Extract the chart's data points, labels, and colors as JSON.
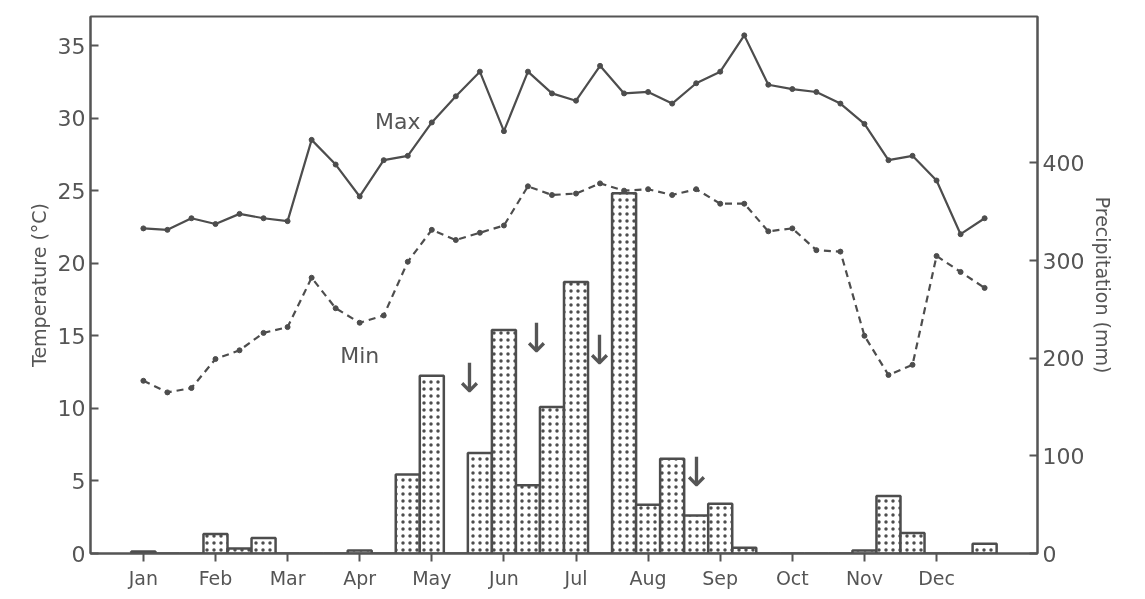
{
  "chart_data": {
    "type": "line",
    "ylabel": "Temperature (°C)",
    "y2label": "Precipitation (mm)",
    "categories": [
      "Jan",
      null,
      null,
      "Feb",
      null,
      null,
      "Mar",
      null,
      null,
      "Apr",
      null,
      null,
      "May",
      null,
      null,
      "Jun",
      null,
      null,
      "Jul",
      null,
      null,
      "Aug",
      null,
      null,
      "Sep",
      null,
      null,
      "Oct",
      null,
      null,
      "Nov",
      null,
      null,
      "Dec",
      null,
      null
    ],
    "ylim": [
      0,
      37
    ],
    "yticks": [
      0,
      5,
      10,
      15,
      20,
      25,
      30,
      35
    ],
    "y2lim": [
      0,
      550
    ],
    "y2ticks": [
      0,
      100,
      200,
      300,
      400
    ],
    "series": [
      {
        "name": "Max",
        "color": "#4d4d4d",
        "line_style": "solid",
        "marker": "circle",
        "values": [
          22.4,
          22.3,
          23.1,
          22.7,
          23.4,
          23.1,
          22.9,
          28.5,
          26.8,
          24.6,
          27.1,
          27.4,
          29.7,
          31.5,
          33.2,
          29.1,
          33.2,
          31.7,
          31.2,
          33.6,
          31.7,
          31.8,
          31.0,
          32.4,
          33.2,
          35.7,
          32.3,
          32.0,
          31.8,
          31.0,
          29.6,
          27.1,
          27.4,
          25.7,
          22.0,
          23.1
        ]
      },
      {
        "name": "Min",
        "color": "#4d4d4d",
        "line_style": "dashed",
        "marker": "circle",
        "values": [
          11.9,
          11.1,
          11.4,
          13.4,
          14.0,
          15.2,
          15.6,
          19.0,
          16.9,
          15.9,
          16.4,
          20.1,
          22.3,
          21.6,
          22.1,
          22.6,
          25.3,
          24.7,
          24.8,
          25.5,
          25.0,
          25.1,
          24.7,
          25.1,
          24.1,
          24.1,
          22.2,
          22.4,
          20.9,
          20.8,
          15.0,
          12.3,
          13.0,
          20.5,
          19.4,
          18.3
        ]
      },
      {
        "type": "bar",
        "axis": "y2",
        "color": "#4d4d4d",
        "values": [
          2,
          0,
          0,
          20,
          5,
          16,
          0,
          0,
          0,
          3,
          0,
          81,
          182,
          0,
          103,
          229,
          70,
          150,
          278,
          0,
          369,
          50,
          97,
          39,
          51,
          6,
          0,
          0,
          0,
          0,
          3,
          59,
          21,
          0,
          0,
          10
        ]
      }
    ],
    "annotations": [
      "↓",
      "↓",
      "↓",
      "↓"
    ]
  }
}
